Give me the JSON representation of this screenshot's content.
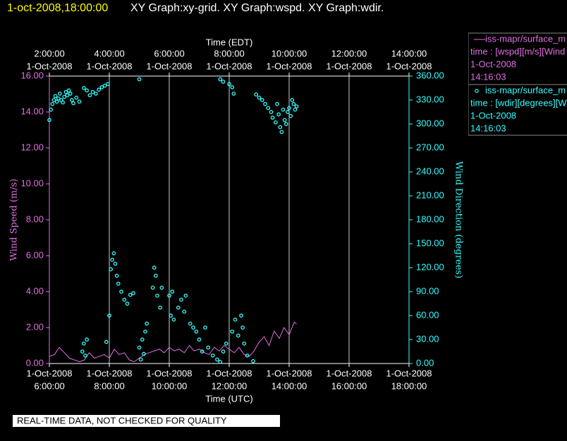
{
  "chart_data": {
    "type": "xy",
    "title": "1-oct-2008,18:00:00",
    "subtitle": "XY Graph:xy-grid.  XY Graph:wspd.  XY Graph:wdir.",
    "x_label": "Time (UTC)",
    "x2_label": "Time (EDT)",
    "y_label": "Wind Speed (m/s)",
    "y2_label": "Wind Direction (degrees)",
    "footer": "REAL-TIME DATA, NOT CHECKED FOR QUALITY",
    "grid": true,
    "xlim": [
      6,
      18
    ],
    "xticks": [
      {
        "value": 6,
        "label": "6:00:00"
      },
      {
        "value": 8,
        "label": "8:00:00"
      },
      {
        "value": 10,
        "label": "10:00:00"
      },
      {
        "value": 12,
        "label": "12:00:00"
      },
      {
        "value": 14,
        "label": "14:00:00"
      },
      {
        "value": 16,
        "label": "16:00:00"
      },
      {
        "value": 18,
        "label": "18:00:00"
      }
    ],
    "xtick_dates": [
      "1-Oct-2008",
      "1-Oct-2008",
      "1-Oct-2008",
      "1-Oct-2008",
      "1-Oct-2008",
      "1-Oct-2008",
      "1-Oct-2008"
    ],
    "x2ticks": [
      {
        "value": 6,
        "label": "2:00:00"
      },
      {
        "value": 8,
        "label": "4:00:00"
      },
      {
        "value": 10,
        "label": "6:00:00"
      },
      {
        "value": 12,
        "label": "8:00:00"
      },
      {
        "value": 14,
        "label": "10:00:00"
      },
      {
        "value": 16,
        "label": "12:00:00"
      },
      {
        "value": 18,
        "label": "14:00:00"
      }
    ],
    "x2tick_dates": [
      "1-Oct-2008",
      "1-Oct-2008",
      "1-Oct-2008",
      "1-Oct-2008",
      "1-Oct-2008",
      "1-Oct-2008",
      "1-Oct-2008"
    ],
    "ylim": [
      0,
      16
    ],
    "yticks": [
      {
        "value": 0,
        "label": "0.00"
      },
      {
        "value": 2,
        "label": "2.00"
      },
      {
        "value": 4,
        "label": "4.00"
      },
      {
        "value": 6,
        "label": "6.00"
      },
      {
        "value": 8,
        "label": "8.00"
      },
      {
        "value": 10,
        "label": "10.00"
      },
      {
        "value": 12,
        "label": "12.00"
      },
      {
        "value": 14,
        "label": "14.00"
      },
      {
        "value": 16,
        "label": "16.00"
      }
    ],
    "y2lim": [
      0,
      360
    ],
    "y2ticks": [
      {
        "value": 0,
        "label": "0.00"
      },
      {
        "value": 30,
        "label": "30.00"
      },
      {
        "value": 60,
        "label": "60.00"
      },
      {
        "value": 90,
        "label": "90.00"
      },
      {
        "value": 120,
        "label": "120.00"
      },
      {
        "value": 150,
        "label": "150.00"
      },
      {
        "value": 180,
        "label": "180.00"
      },
      {
        "value": 210,
        "label": "210.00"
      },
      {
        "value": 240,
        "label": "240.00"
      },
      {
        "value": 270,
        "label": "270.00"
      },
      {
        "value": 300,
        "label": "300.00"
      },
      {
        "value": 330,
        "label": "330.00"
      },
      {
        "value": 360,
        "label": "360.00"
      }
    ],
    "series": [
      {
        "name": "iss-mapr/surface_m",
        "type": "line",
        "color": "#e070e0",
        "legend_detail": "time : [wspd][m/s][Wind",
        "legend_date": "1-Oct-2008",
        "legend_time": "14:16:03",
        "x": [
          6.0,
          6.17,
          6.33,
          6.5,
          6.67,
          6.83,
          7.0,
          7.17,
          7.33,
          7.5,
          7.67,
          7.83,
          8.0,
          8.17,
          8.33,
          8.5,
          8.67,
          8.83,
          9.0,
          9.17,
          9.33,
          9.5,
          9.67,
          9.83,
          10.0,
          10.17,
          10.33,
          10.5,
          10.67,
          10.83,
          11.0,
          11.17,
          11.33,
          11.5,
          11.67,
          11.83,
          12.0,
          12.17,
          12.33,
          12.5,
          12.67,
          12.83,
          13.0,
          13.17,
          13.33,
          13.5,
          13.67,
          13.83,
          14.0,
          14.17,
          14.25
        ],
        "values": [
          0.4,
          0.5,
          0.9,
          0.6,
          0.3,
          0.2,
          0.1,
          0.2,
          0.6,
          0.3,
          0.4,
          0.5,
          0.3,
          0.8,
          0.5,
          0.6,
          0.2,
          0.1,
          0.3,
          0.5,
          0.6,
          0.7,
          0.8,
          0.6,
          0.9,
          0.7,
          0.8,
          0.6,
          1.0,
          0.7,
          0.8,
          0.6,
          0.5,
          0.9,
          0.7,
          1.0,
          0.8,
          0.6,
          0.9,
          0.5,
          0.4,
          0.7,
          1.2,
          1.5,
          1.0,
          1.8,
          1.4,
          2.0,
          1.6,
          2.3,
          2.2
        ]
      },
      {
        "name": "iss-mapr/surface_m",
        "type": "scatter",
        "axis": "y2",
        "color": "#33ffff",
        "legend_detail": "time : [wdir][degrees][W",
        "legend_date": "1-Oct-2008",
        "legend_time": "14:16:03",
        "x": [
          6.0,
          6.05,
          6.1,
          6.15,
          6.2,
          6.25,
          6.3,
          6.35,
          6.4,
          6.45,
          6.5,
          6.55,
          6.6,
          6.65,
          6.7,
          6.75,
          6.8,
          6.9,
          7.0,
          7.15,
          7.25,
          7.35,
          7.45,
          7.55,
          7.65,
          7.75,
          7.85,
          7.95,
          9.0,
          11.7,
          11.8,
          12.0,
          12.1,
          12.15,
          12.9,
          13.0,
          13.1,
          13.2,
          13.3,
          13.4,
          13.45,
          13.55,
          13.6,
          13.65,
          13.7,
          13.75,
          13.8,
          13.85,
          13.9,
          13.95,
          14.0,
          14.05,
          14.1,
          14.15,
          14.2,
          14.25,
          7.1,
          7.15,
          7.2,
          7.25,
          7.9,
          8.0,
          8.05,
          8.1,
          8.15,
          8.2,
          8.25,
          8.3,
          8.4,
          8.5,
          8.6,
          8.7,
          8.8,
          9.0,
          9.05,
          9.1,
          9.15,
          9.2,
          9.25,
          9.45,
          9.5,
          9.55,
          9.6,
          9.7,
          9.75,
          10.0,
          10.05,
          10.1,
          10.15,
          10.3,
          10.4,
          10.5,
          10.55,
          10.7,
          10.8,
          10.9,
          11.0,
          11.1,
          11.2,
          11.3,
          11.45,
          11.6,
          11.7,
          11.8,
          11.9,
          12.1,
          12.2,
          12.3,
          12.4,
          12.45,
          12.5,
          12.6,
          12.8
        ],
        "values": [
          305,
          318,
          325,
          330,
          335,
          328,
          332,
          338,
          330,
          327,
          334,
          340,
          336,
          342,
          338,
          330,
          326,
          333,
          328,
          345,
          342,
          336,
          340,
          338,
          343,
          346,
          348,
          350,
          356,
          356,
          353,
          350,
          346,
          338,
          337,
          333,
          330,
          325,
          320,
          315,
          308,
          302,
          325,
          312,
          296,
          290,
          318,
          305,
          300,
          315,
          320,
          310,
          330,
          325,
          318,
          322,
          15,
          25,
          10,
          30,
          27,
          60,
          118,
          130,
          138,
          125,
          110,
          100,
          90,
          80,
          75,
          86,
          88,
          20,
          5,
          30,
          12,
          40,
          50,
          95,
          120,
          110,
          85,
          70,
          95,
          85,
          60,
          90,
          55,
          70,
          80,
          65,
          85,
          50,
          45,
          40,
          30,
          15,
          45,
          20,
          10,
          5,
          2,
          15,
          25,
          40,
          55,
          35,
          60,
          45,
          25,
          10,
          3
        ]
      }
    ]
  }
}
